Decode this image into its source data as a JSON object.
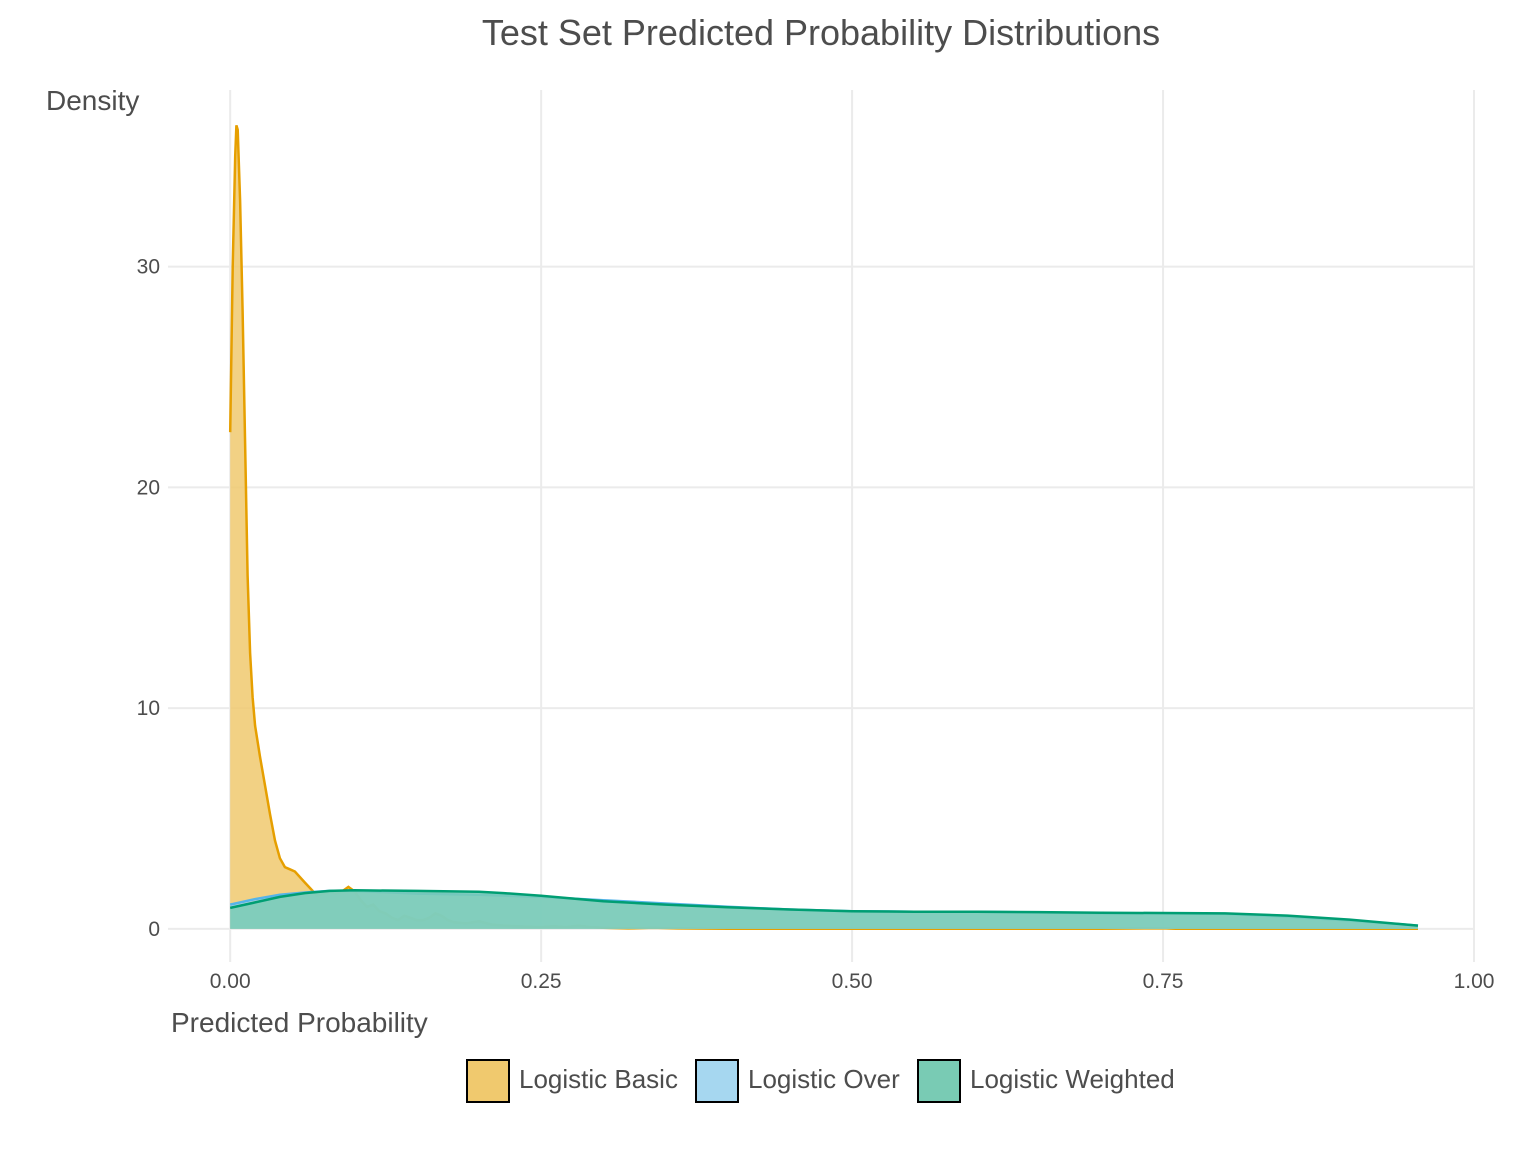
{
  "chart_data": {
    "type": "area",
    "title": "Test Set Predicted Probability Distributions",
    "xlabel": "Predicted Probability",
    "ylabel": "Density",
    "xlim": [
      -0.05,
      1.0
    ],
    "ylim": [
      -1.5,
      38
    ],
    "x_ticks": [
      0.0,
      0.25,
      0.5,
      0.75,
      1.0
    ],
    "x_tick_labels": [
      "0.00",
      "0.25",
      "0.50",
      "0.75",
      "1.00"
    ],
    "y_ticks": [
      0,
      10,
      20,
      30
    ],
    "y_tick_labels": [
      "0",
      "10",
      "20",
      "30"
    ],
    "grid": true,
    "legend_position": "bottom",
    "series": [
      {
        "name": "Logistic Basic",
        "fill": "#f0c96e",
        "fill_opacity": 0.85,
        "stroke": "#e69f00",
        "x": [
          0.0,
          0.002,
          0.004,
          0.005,
          0.006,
          0.008,
          0.01,
          0.012,
          0.014,
          0.016,
          0.018,
          0.02,
          0.024,
          0.028,
          0.032,
          0.036,
          0.04,
          0.044,
          0.048,
          0.052,
          0.06,
          0.07,
          0.075,
          0.08,
          0.085,
          0.09,
          0.095,
          0.1,
          0.105,
          0.11,
          0.115,
          0.12,
          0.125,
          0.13,
          0.135,
          0.14,
          0.145,
          0.15,
          0.155,
          0.16,
          0.165,
          0.17,
          0.175,
          0.18,
          0.19,
          0.2,
          0.21,
          0.22,
          0.23,
          0.24,
          0.25,
          0.26,
          0.27,
          0.28,
          0.29,
          0.3,
          0.32,
          0.34,
          0.36,
          0.4,
          0.5,
          0.6,
          0.7,
          0.75,
          0.76,
          0.8,
          0.9,
          0.955
        ],
        "y": [
          22.5,
          30,
          35,
          36.4,
          36.2,
          33,
          28,
          22,
          16,
          12.5,
          10.5,
          9.2,
          7.8,
          6.5,
          5.2,
          4.0,
          3.2,
          2.8,
          2.7,
          2.6,
          2.1,
          1.5,
          1.6,
          1.7,
          1.6,
          1.7,
          1.9,
          1.7,
          1.3,
          1.0,
          1.1,
          0.8,
          0.7,
          0.5,
          0.4,
          0.6,
          0.5,
          0.4,
          0.4,
          0.5,
          0.7,
          0.6,
          0.4,
          0.3,
          0.25,
          0.35,
          0.2,
          0.15,
          0.12,
          0.1,
          0.08,
          0.12,
          0.08,
          0.15,
          0.08,
          0.05,
          0.02,
          0.05,
          0.02,
          0.01,
          0.01,
          0.01,
          0.01,
          0.03,
          0.01,
          0.01,
          0.01,
          0.01
        ]
      },
      {
        "name": "Logistic Over",
        "fill": "#a6d7f0",
        "fill_opacity": 0.85,
        "stroke": "#56b4e9",
        "x": [
          0.0,
          0.02,
          0.04,
          0.06,
          0.08,
          0.1,
          0.15,
          0.2,
          0.25,
          0.3,
          0.35,
          0.4,
          0.45,
          0.5,
          0.55,
          0.6,
          0.65,
          0.7,
          0.75,
          0.8,
          0.85,
          0.9,
          0.955
        ],
        "y": [
          1.1,
          1.35,
          1.55,
          1.65,
          1.72,
          1.72,
          1.6,
          1.55,
          1.45,
          1.3,
          1.15,
          1.0,
          0.88,
          0.8,
          0.78,
          0.78,
          0.74,
          0.7,
          0.7,
          0.68,
          0.55,
          0.38,
          0.15
        ]
      },
      {
        "name": "Logistic Weighted",
        "fill": "#79cbb4",
        "fill_opacity": 0.85,
        "stroke": "#009e73",
        "x": [
          0.0,
          0.02,
          0.04,
          0.06,
          0.08,
          0.1,
          0.15,
          0.2,
          0.22,
          0.25,
          0.3,
          0.35,
          0.4,
          0.45,
          0.5,
          0.55,
          0.6,
          0.65,
          0.7,
          0.75,
          0.8,
          0.85,
          0.9,
          0.955
        ],
        "y": [
          0.95,
          1.2,
          1.45,
          1.62,
          1.72,
          1.75,
          1.72,
          1.68,
          1.62,
          1.5,
          1.25,
          1.1,
          0.98,
          0.88,
          0.8,
          0.78,
          0.78,
          0.76,
          0.73,
          0.72,
          0.7,
          0.6,
          0.42,
          0.15
        ]
      }
    ]
  }
}
